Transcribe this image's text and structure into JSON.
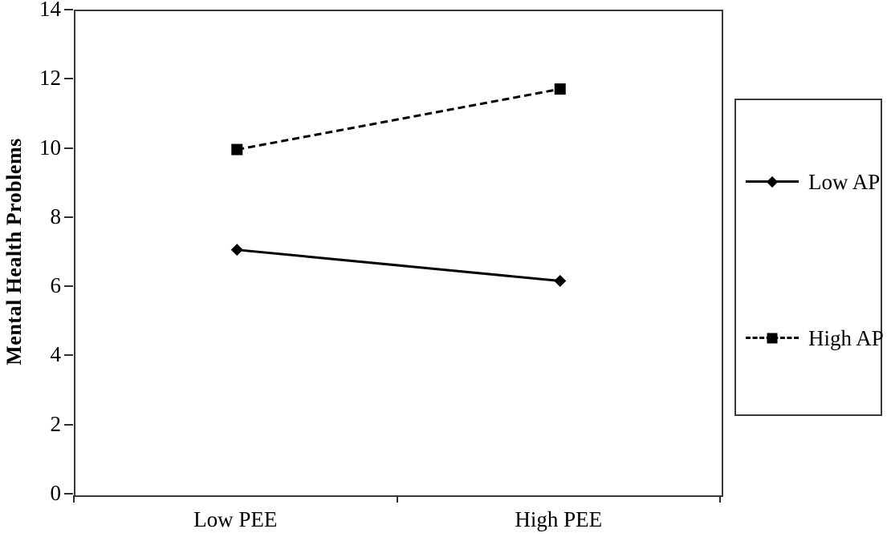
{
  "chart_data": {
    "type": "line",
    "title": "",
    "xlabel": "",
    "ylabel": "Mental Health Problems",
    "categories": [
      "Low PEE",
      "High PEE"
    ],
    "series": [
      {
        "name": "Low AP",
        "values": [
          7.1,
          6.2
        ],
        "line_style": "solid",
        "marker": "diamond",
        "color": "#000000"
      },
      {
        "name": "High AP",
        "values": [
          10.0,
          11.75
        ],
        "line_style": "dashed",
        "marker": "square",
        "color": "#000000"
      }
    ],
    "ylim": [
      0,
      14
    ],
    "yticks": [
      0,
      2,
      4,
      6,
      8,
      10,
      12,
      14
    ],
    "grid": false,
    "legend_position": "right-outside"
  },
  "colors": {
    "background": "#ffffff",
    "line": "#000000",
    "text": "#000000",
    "frame_border": "#3a3a3a"
  }
}
